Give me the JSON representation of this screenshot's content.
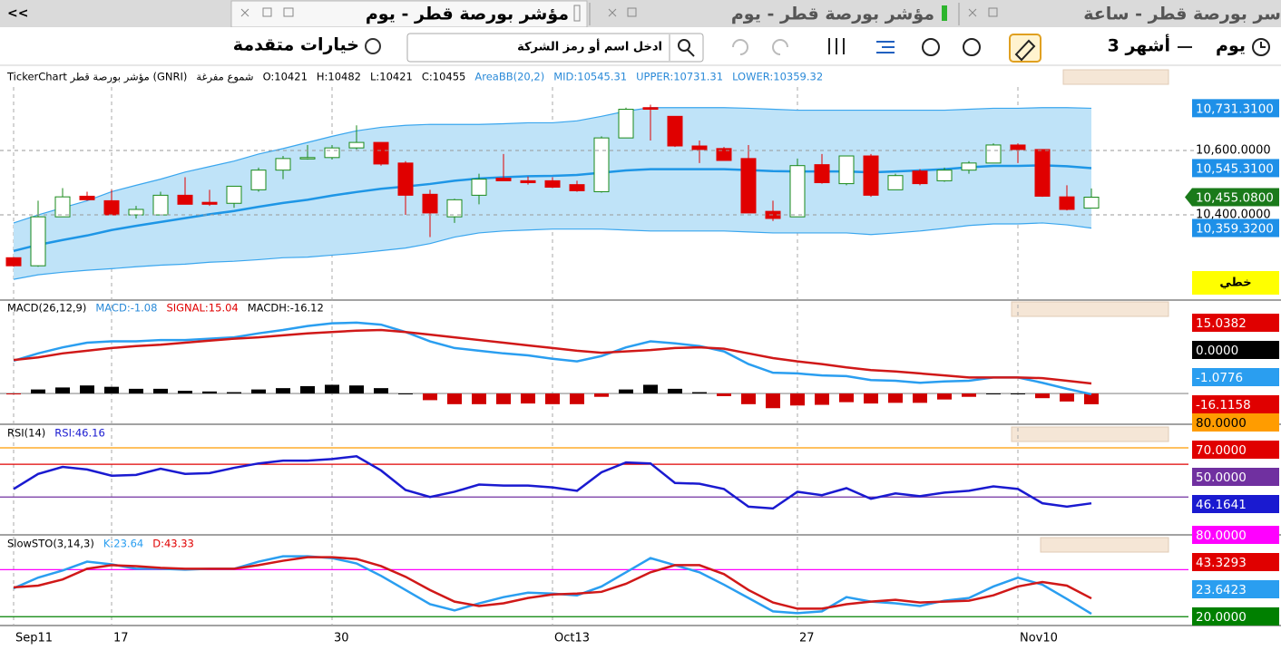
{
  "tabs": {
    "back": "<<",
    "items": [
      "مؤشر بورصة قطر - يوم",
      "مؤشر بورصة قطر - يوم",
      "سر بورصة قطر - ساعة"
    ]
  },
  "toolbar": {
    "period": "يوم",
    "range": "3 أشهر",
    "advanced": "خيارات متقدمة",
    "search_placeholder": "ادخل اسم أو رمز الشركة",
    "line_type": "خطي"
  },
  "chart_data": [
    {
      "type": "candlestick",
      "header": [
        {
          "text": "TickerChart مؤشر بورصة قطر (GNRI)",
          "color": "#000000"
        },
        {
          "text": "شموع مفرغة",
          "color": "#000000"
        },
        {
          "text": "O:10421",
          "color": "#000000"
        },
        {
          "text": "H:10482",
          "color": "#000000"
        },
        {
          "text": "L:10421",
          "color": "#000000"
        },
        {
          "text": "C:10455",
          "color": "#000000"
        },
        {
          "text": "AreaBB(20,2)",
          "color": "#2a8ad8"
        },
        {
          "text": "MID:10545.31",
          "color": "#2a8ad8"
        },
        {
          "text": "UPPER:10731.31",
          "color": "#2a8ad8"
        },
        {
          "text": "LOWER:10359.32",
          "color": "#2a8ad8"
        }
      ],
      "categories": [
        "Sep11",
        null,
        null,
        null,
        "17",
        null,
        null,
        null,
        null,
        null,
        null,
        null,
        null,
        "30",
        null,
        null,
        null,
        null,
        null,
        null,
        null,
        null,
        "Oct13",
        null,
        null,
        null,
        null,
        null,
        null,
        null,
        null,
        null,
        "27",
        null,
        null,
        null,
        null,
        null,
        null,
        null,
        null,
        "Nov10",
        null,
        null,
        null
      ],
      "open": [
        10267,
        10242,
        10394,
        10458,
        10444,
        10400,
        10400,
        10461,
        10439,
        10436,
        10478,
        10539,
        10575,
        10578,
        10608,
        10625,
        10561,
        10464,
        10394,
        10461,
        10514,
        10506,
        10506,
        10494,
        10472,
        10639,
        10733,
        10706,
        10614,
        10606,
        10575,
        10411,
        10394,
        10556,
        10497,
        10583,
        10478,
        10536,
        10506,
        10539,
        10561,
        10617,
        10603,
        10456,
        10421
      ],
      "high": [
        10269,
        10444,
        10483,
        10472,
        10478,
        10428,
        10472,
        10517,
        10478,
        10489,
        10547,
        10583,
        10617,
        10617,
        10678,
        10625,
        10567,
        10478,
        10450,
        10528,
        10589,
        10519,
        10517,
        10506,
        10644,
        10733,
        10742,
        10706,
        10631,
        10611,
        10617,
        10444,
        10575,
        10589,
        10583,
        10589,
        10528,
        10542,
        10547,
        10567,
        10622,
        10622,
        10603,
        10492,
        10482
      ],
      "low": [
        10239,
        10239,
        10394,
        10444,
        10400,
        10389,
        10400,
        10433,
        10428,
        10422,
        10472,
        10511,
        10572,
        10572,
        10603,
        10553,
        10400,
        10331,
        10375,
        10433,
        10506,
        10494,
        10483,
        10472,
        10469,
        10639,
        10631,
        10611,
        10561,
        10569,
        10406,
        10381,
        10394,
        10497,
        10492,
        10456,
        10478,
        10492,
        10503,
        10528,
        10561,
        10561,
        10456,
        10414,
        10421
      ],
      "close": [
        10242,
        10394,
        10456,
        10447,
        10400,
        10417,
        10461,
        10433,
        10433,
        10489,
        10539,
        10575,
        10578,
        10608,
        10625,
        10558,
        10461,
        10406,
        10447,
        10511,
        10506,
        10500,
        10486,
        10475,
        10639,
        10728,
        10728,
        10614,
        10603,
        10569,
        10406,
        10389,
        10553,
        10500,
        10583,
        10461,
        10522,
        10497,
        10539,
        10561,
        10617,
        10603,
        10458,
        10417,
        10455
      ],
      "up_color": "#1a8a1a",
      "down_color": "#e00000",
      "band_fill": "#bfe3f8",
      "series": [
        {
          "name": "UPPER",
          "color": "#3aa6ee",
          "values": [
            10375,
            10400,
            10422,
            10444,
            10472,
            10492,
            10511,
            10533,
            10550,
            10567,
            10589,
            10606,
            10625,
            10644,
            10661,
            10672,
            10678,
            10681,
            10681,
            10681,
            10683,
            10686,
            10686,
            10692,
            10706,
            10722,
            10733,
            10733,
            10733,
            10733,
            10731,
            10728,
            10725,
            10725,
            10725,
            10725,
            10725,
            10725,
            10725,
            10728,
            10731,
            10731,
            10733,
            10733,
            10731
          ]
        },
        {
          "name": "MID",
          "color": "#1e96e6",
          "values": [
            10288,
            10307,
            10322,
            10336,
            10353,
            10366,
            10378,
            10390,
            10402,
            10412,
            10425,
            10437,
            10447,
            10460,
            10471,
            10481,
            10488,
            10496,
            10506,
            10513,
            10517,
            10520,
            10521,
            10524,
            10531,
            10538,
            10542,
            10542,
            10542,
            10542,
            10539,
            10536,
            10535,
            10535,
            10535,
            10532,
            10535,
            10538,
            10542,
            10548,
            10552,
            10552,
            10554,
            10551,
            10545
          ]
        },
        {
          "name": "LOWER",
          "color": "#3aa6ee",
          "values": [
            10200,
            10214,
            10222,
            10228,
            10233,
            10239,
            10244,
            10247,
            10253,
            10256,
            10261,
            10267,
            10269,
            10275,
            10281,
            10289,
            10297,
            10311,
            10331,
            10344,
            10350,
            10353,
            10356,
            10356,
            10356,
            10353,
            10350,
            10350,
            10350,
            10350,
            10347,
            10344,
            10344,
            10344,
            10344,
            10339,
            10344,
            10350,
            10358,
            10367,
            10372,
            10372,
            10375,
            10369,
            10359
          ]
        }
      ],
      "ylim": [
        10144,
        10797
      ],
      "yticks": [
        {
          "value": 10600,
          "label": "10,600.0000"
        },
        {
          "value": 10400,
          "label": "10,400.0000"
        }
      ],
      "grid": true,
      "markers": [
        {
          "value": 10731.31,
          "label": "10,731.3100",
          "color": "#1e90e8"
        },
        {
          "value": 10545.31,
          "label": "10,545.3100",
          "color": "#1e90e8"
        },
        {
          "value": 10455.08,
          "label": "10,455.0800",
          "color": "#1a7a1a",
          "pointer": true
        },
        {
          "value": 10359.32,
          "label": "10,359.3200",
          "color": "#1e90e8"
        }
      ]
    },
    {
      "type": "macd",
      "header": [
        {
          "text": "MACD(26,12,9)",
          "color": "#000000"
        },
        {
          "text": "MACD:-1.08",
          "color": "#2a8ad8"
        },
        {
          "text": "SIGNAL:15.04",
          "color": "#e00000"
        },
        {
          "text": "MACDH:-16.12",
          "color": "#000000"
        }
      ],
      "series": [
        {
          "name": "MACD",
          "color": "#2a9ef0",
          "values": [
            49,
            60,
            69,
            76,
            78,
            78,
            80,
            80,
            82,
            84,
            90,
            95,
            101,
            105,
            106,
            103,
            92,
            78,
            68,
            64,
            60,
            57,
            52,
            48,
            56,
            69,
            78,
            75,
            71,
            63,
            44,
            31,
            30,
            27,
            26,
            20,
            19,
            16,
            18,
            19,
            24,
            24,
            16,
            7,
            -1.08
          ]
        },
        {
          "name": "SIGNAL",
          "color": "#d01818",
          "values": [
            50,
            54,
            60,
            64,
            68,
            71,
            73,
            76,
            79,
            82,
            84,
            87,
            90,
            92,
            94,
            95,
            92,
            88,
            84,
            80,
            76,
            72,
            68,
            64,
            61,
            63,
            65,
            68,
            69,
            67,
            60,
            53,
            48,
            44,
            39,
            35,
            33,
            30,
            27,
            24,
            24,
            24,
            23,
            19,
            15.04
          ]
        }
      ],
      "histogram": {
        "name": "MACDH",
        "up_color": "#000000",
        "down_color": "#d00000",
        "values": [
          -1,
          6,
          9,
          12,
          10,
          7,
          7,
          4,
          3,
          2,
          6,
          8,
          11,
          13,
          12,
          8,
          0,
          -10,
          -16,
          -16,
          -16,
          -15,
          -16,
          -16,
          -5,
          6,
          13,
          7,
          2,
          -4,
          -16,
          -22,
          -18,
          -17,
          -13,
          -15,
          -14,
          -14,
          -9,
          -5,
          0,
          0,
          -7,
          -12,
          -16.12
        ]
      },
      "ylim": [
        -42,
        114
      ],
      "markers": [
        {
          "value": 15.0382,
          "color": "#e00000"
        },
        {
          "value": 0,
          "label": "0.0000",
          "color": "#000000",
          "level": true,
          "line_color": "#8c8c8c"
        },
        {
          "value": -1.0776,
          "color": "#2a9ef0"
        },
        {
          "value": -16.1158,
          "color": "#e00000"
        }
      ]
    },
    {
      "type": "line",
      "header": [
        {
          "text": "RSI(14)",
          "color": "#000000"
        },
        {
          "text": "RSI:46.16",
          "color": "#1a1ad0"
        }
      ],
      "series": [
        {
          "name": "RSI",
          "color": "#1a1ad0",
          "values": [
            54.9,
            64.1,
            68.4,
            66.8,
            63,
            63.5,
            67.3,
            64.1,
            64.6,
            67.8,
            70.5,
            72.2,
            72.2,
            73.2,
            74.9,
            66.2,
            54.3,
            50,
            53.2,
            57.6,
            57,
            57,
            55.9,
            53.8,
            65.1,
            71.1,
            70.5,
            58.6,
            58.1,
            54.9,
            44.1,
            43,
            53.2,
            51.1,
            55.4,
            48.9,
            52.2,
            50.5,
            52.7,
            53.8,
            56.5,
            54.9,
            46.2,
            44.1,
            46.16
          ]
        }
      ],
      "ylim": [
        28,
        85
      ],
      "markers": [
        {
          "value": 80,
          "label": "80.0000",
          "color": "#ff9c00",
          "text_color": "#000000",
          "level": true
        },
        {
          "value": 70,
          "label": "70.0000",
          "color": "#e00000",
          "level": true
        },
        {
          "value": 50,
          "label": "50.0000",
          "color": "#7030a0",
          "level": true
        },
        {
          "value": 46.1641,
          "color": "#1a1ad0"
        }
      ]
    },
    {
      "type": "line",
      "header": [
        {
          "text": "SlowSTO(3,14,3)",
          "color": "#000000"
        },
        {
          "text": "K:23.64",
          "color": "#2a9ef0"
        },
        {
          "text": "D:43.33",
          "color": "#e00000"
        }
      ],
      "series": [
        {
          "name": "K",
          "color": "#2a9ef0",
          "values": [
            56.2,
            69.8,
            78.9,
            90.2,
            86.8,
            81.1,
            81.1,
            80,
            81.1,
            81.1,
            90.2,
            97,
            97,
            94.7,
            87.9,
            72.1,
            54,
            35.9,
            27.9,
            37,
            44.9,
            50.6,
            49.4,
            47.2,
            58.5,
            76.6,
            94.7,
            85.7,
            76.6,
            60.8,
            43.8,
            26.8,
            24.5,
            26.8,
            44.9,
            39.2,
            37,
            33.6,
            40.4,
            43.8,
            58.5,
            69.8,
            60.8,
            42.6,
            23.64
          ]
        },
        {
          "name": "D",
          "color": "#d01818",
          "values": [
            57.4,
            59.6,
            67.5,
            81.1,
            85.7,
            84.5,
            82.3,
            81.1,
            81.1,
            81.1,
            85.7,
            91.3,
            95.8,
            95.8,
            93.6,
            84.5,
            70.9,
            54,
            39.2,
            33.6,
            37,
            43.8,
            48.3,
            49.4,
            51.7,
            61.9,
            76.6,
            85.7,
            85.7,
            74.3,
            54,
            38.1,
            30.2,
            30.2,
            35.9,
            39.2,
            41.5,
            38.1,
            39.2,
            40.4,
            47.2,
            58.5,
            64.2,
            59.6,
            43.33
          ]
        }
      ],
      "ylim": [
        11,
        107
      ],
      "markers": [
        {
          "value": 80,
          "label": "80.0000",
          "color": "#ff00ff",
          "level": true
        },
        {
          "value": 43.3293,
          "color": "#e00000"
        },
        {
          "value": 23.6423,
          "color": "#2a9ef0"
        },
        {
          "value": 20,
          "label": "20.0000",
          "color": "#008000",
          "level": true
        }
      ]
    }
  ]
}
